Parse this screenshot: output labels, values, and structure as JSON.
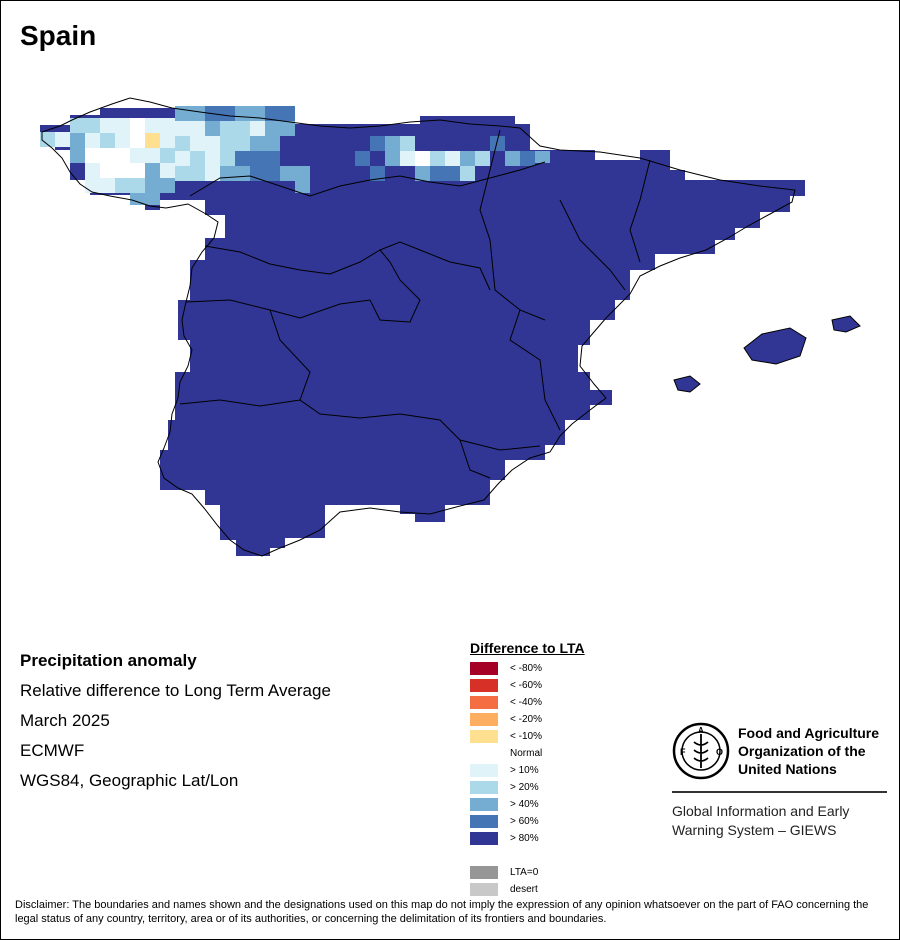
{
  "title": "Spain",
  "info": {
    "heading": "Precipitation anomaly",
    "line1": "Relative difference to Long Term Average",
    "line2": "March 2025",
    "line3": "ECMWF",
    "line4": "WGS84, Geographic Lat/Lon"
  },
  "legend": {
    "title": "Difference to LTA",
    "items": [
      {
        "label": "< -80%",
        "color": "#a50026"
      },
      {
        "label": "< -60%",
        "color": "#d73027"
      },
      {
        "label": "< -40%",
        "color": "#f46d43"
      },
      {
        "label": "< -20%",
        "color": "#fdae61"
      },
      {
        "label": "< -10%",
        "color": "#fee090"
      },
      {
        "label": "Normal",
        "color": "#ffffff"
      },
      {
        "label": "> 10%",
        "color": "#e0f3f8"
      },
      {
        "label": "> 20%",
        "color": "#abd9e9"
      },
      {
        "label": "> 40%",
        "color": "#74add1"
      },
      {
        "label": "> 60%",
        "color": "#4575b4"
      },
      {
        "label": "> 80%",
        "color": "#313695"
      },
      {
        "label": "",
        "color": "#ffffff"
      },
      {
        "label": "LTA=0",
        "color": "#969696"
      },
      {
        "label": "desert",
        "color": "#c8c8c8"
      }
    ]
  },
  "fao": {
    "org_line1": "Food and Agriculture",
    "org_line2": "Organization of the",
    "org_line3": "United Nations",
    "logo_text": "FAO",
    "motto": "FIAT PANIS",
    "giews_line1": "Global Information and Early",
    "giews_line2": "Warning System – GIEWS"
  },
  "disclaimer": "Disclaimer: The boundaries and names shown and the designations used on this map do not imply the expression of any opinion whatsoever on the part of FAO concerning the legal status of any country, territory, area or of its authorities, or concerning the delimitation of its frontiers and boundaries.",
  "map": {
    "region": "Spain",
    "dominant_class": "> 80%"
  }
}
